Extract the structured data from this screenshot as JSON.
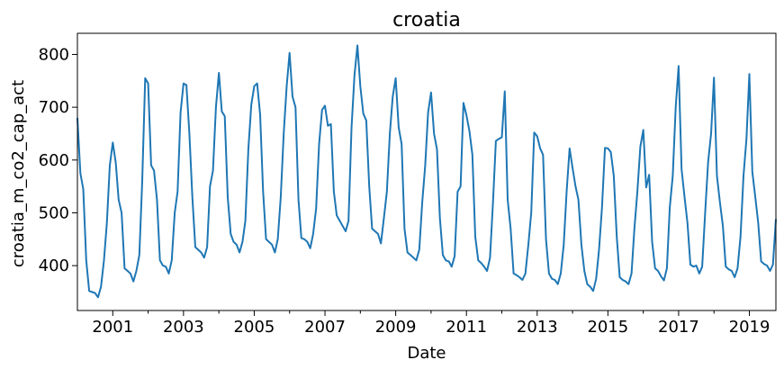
{
  "chart_data": {
    "type": "line",
    "title": "croatia",
    "xlabel": "Date",
    "ylabel": "croatia_m_co2_cap_act",
    "x_range": [
      "2000-01",
      "2019-10"
    ],
    "ylim": [
      315,
      840
    ],
    "x_major_ticks": [
      "2001",
      "2003",
      "2005",
      "2007",
      "2009",
      "2011",
      "2013",
      "2015",
      "2017",
      "2019"
    ],
    "x_minor_ticks": [
      "2002",
      "2004",
      "2006",
      "2008",
      "2010",
      "2012",
      "2014",
      "2016",
      "2018"
    ],
    "y_ticks": [
      400,
      500,
      600,
      700,
      800
    ],
    "grid": false,
    "legend": "none",
    "series": [
      {
        "color": "#1f77b4",
        "start": "2000-01",
        "frequency": "monthly",
        "values": [
          680,
          575,
          545,
          410,
          352,
          350,
          348,
          340,
          360,
          410,
          480,
          590,
          633,
          595,
          525,
          500,
          395,
          390,
          385,
          370,
          390,
          420,
          560,
          755,
          745,
          590,
          580,
          525,
          410,
          400,
          398,
          385,
          410,
          500,
          540,
          690,
          745,
          742,
          650,
          530,
          435,
          430,
          425,
          415,
          435,
          550,
          580,
          700,
          765,
          692,
          683,
          530,
          460,
          445,
          440,
          425,
          445,
          485,
          620,
          705,
          740,
          745,
          686,
          540,
          450,
          445,
          440,
          425,
          450,
          530,
          650,
          740,
          803,
          720,
          700,
          525,
          452,
          450,
          445,
          433,
          460,
          508,
          630,
          695,
          703,
          665,
          668,
          540,
          495,
          485,
          475,
          465,
          485,
          660,
          760,
          817,
          740,
          688,
          675,
          550,
          470,
          465,
          460,
          442,
          490,
          540,
          650,
          720,
          755,
          662,
          630,
          470,
          425,
          420,
          415,
          410,
          430,
          520,
          590,
          690,
          728,
          650,
          620,
          490,
          420,
          410,
          408,
          398,
          418,
          540,
          550,
          708,
          685,
          655,
          610,
          455,
          410,
          405,
          398,
          390,
          415,
          520,
          636,
          640,
          643,
          730,
          525,
          470,
          385,
          382,
          378,
          373,
          385,
          440,
          500,
          652,
          645,
          622,
          610,
          450,
          385,
          375,
          373,
          365,
          385,
          440,
          540,
          622,
          585,
          550,
          525,
          440,
          390,
          365,
          360,
          352,
          375,
          430,
          510,
          623,
          622,
          615,
          570,
          455,
          378,
          373,
          370,
          365,
          385,
          470,
          540,
          625,
          657,
          548,
          572,
          445,
          395,
          390,
          380,
          372,
          395,
          510,
          570,
          700,
          778,
          583,
          530,
          480,
          402,
          398,
          400,
          385,
          398,
          500,
          596,
          650,
          756,
          570,
          520,
          475,
          398,
          393,
          390,
          378,
          395,
          455,
          570,
          640,
          763,
          578,
          530,
          480,
          408,
          403,
          400,
          390,
          402,
          488
        ]
      }
    ]
  }
}
